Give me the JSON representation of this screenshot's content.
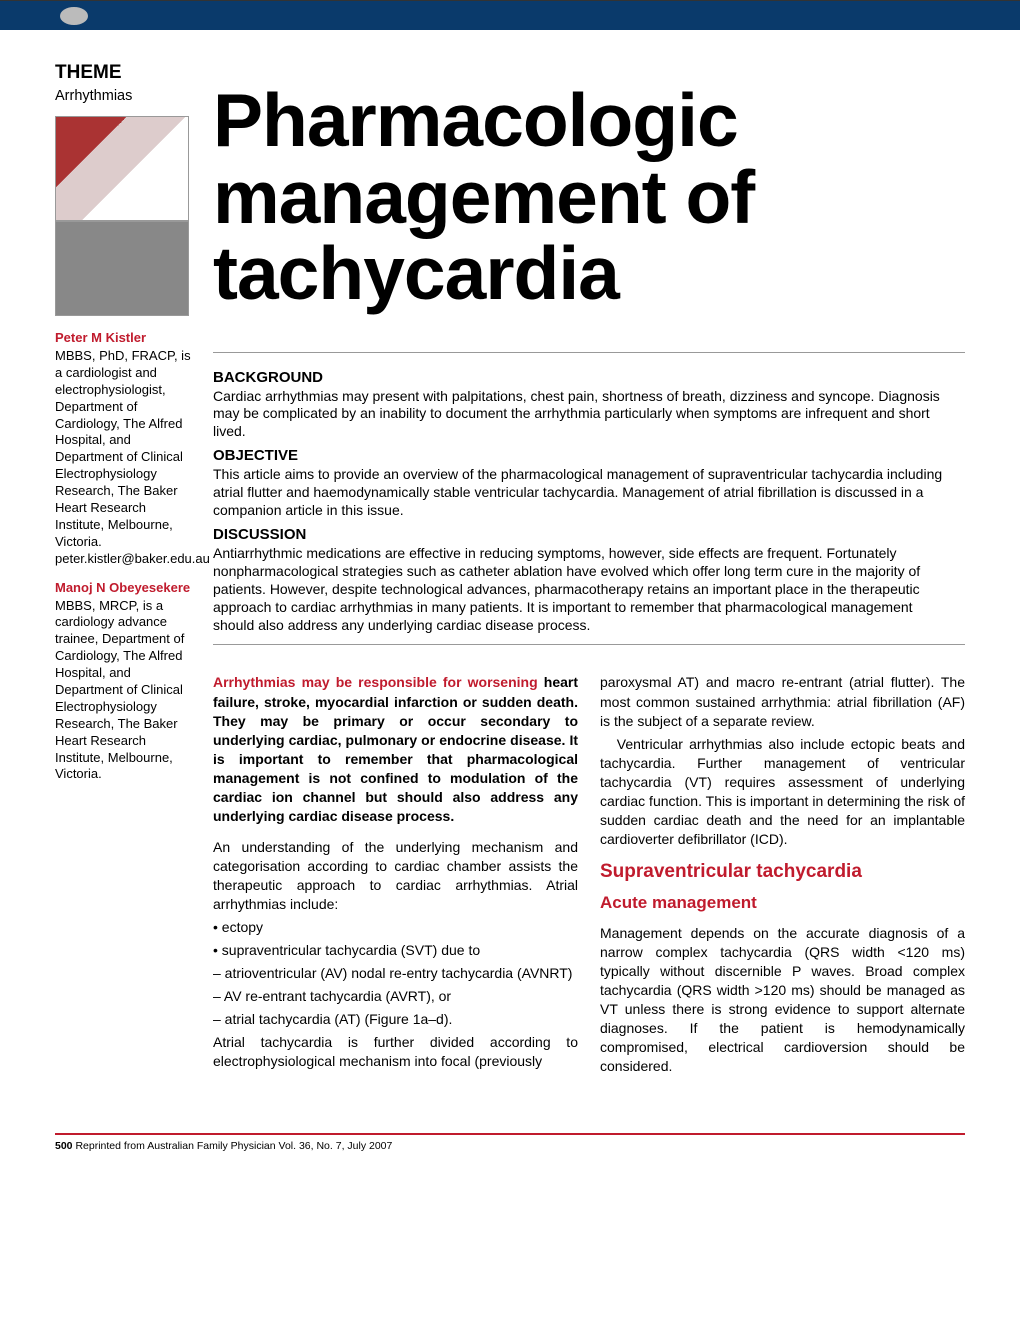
{
  "theme": {
    "label": "THEME",
    "sub": "Arrhythmias"
  },
  "title": "Pharmacologic management of tachycardia",
  "authors": [
    {
      "name": "Peter M Kistler",
      "bio": "MBBS, PhD, FRACP, is a cardiologist and electrophysiologist, Department of Cardiology, The Alfred Hospital, and Department of Clinical Electrophysiology Research, The Baker Heart Research Institute, Melbourne, Victoria. peter.kistler@baker.edu.au"
    },
    {
      "name": "Manoj N Obeyesekere",
      "bio": "MBBS, MRCP, is a cardiology advance trainee, Department of Cardiology, The Alfred Hospital, and Department of Clinical Electrophysiology Research, The Baker Heart Research Institute, Melbourne, Victoria."
    }
  ],
  "abstract": {
    "background_label": "BACKGROUND",
    "background": "Cardiac arrhythmias may present with palpitations, chest pain, shortness of breath, dizziness and syncope. Diagnosis may be complicated by an inability to document the arrhythmia particularly when symptoms are infrequent and short lived.",
    "objective_label": "OBJECTIVE",
    "objective": "This article aims to provide an overview of the pharmacological management of supraventricular tachycardia including atrial flutter and haemodynamically stable ventricular tachycardia. Management of atrial fibrillation is discussed in a companion article in this issue.",
    "discussion_label": "DISCUSSION",
    "discussion": "Antiarrhythmic medications are effective in reducing symptoms, however, side effects are frequent. Fortunately nonpharmacological strategies such as catheter ablation have evolved which offer long term cure in the majority of patients. However, despite technological advances, pharmacotherapy retains an important place in the therapeutic approach to cardiac arrhythmias in many patients. It is important to remember that pharmacological management should also address any underlying cardiac disease process."
  },
  "body": {
    "intro_lead": "Arrhythmias may be responsible for worsening",
    "intro_rest": " heart failure, stroke, myocardial infarction or sudden death. They may be primary or occur secondary to underlying cardiac, pulmonary or endocrine disease. It is important to remember that pharmacological management is not confined to modulation of the cardiac ion channel but should also address any underlying cardiac disease process.",
    "p2": "An understanding of the underlying mechanism and categorisation according to cardiac chamber assists the therapeutic approach to cardiac arrhythmias. Atrial arrhythmias include:",
    "bullets": [
      "• ectopy",
      "• supraventricular tachycardia (SVT) due to",
      "– atrioventricular (AV) nodal re-entry tachycardia (AVNRT)",
      "– AV re-entrant tachycardia (AVRT), or",
      "– atrial tachycardia (AT) (Figure 1a–d)."
    ],
    "p3a": "Atrial tachycardia is further divided according to electrophysiological mechanism into focal (previously",
    "p3b": "paroxysmal AT) and macro re-entrant (atrial flutter). The most common sustained arrhythmia: atrial fibrillation (AF) is the subject of a separate review.",
    "p4": "Ventricular arrhythmias also include ectopic beats and tachycardia. Further management of ventricular tachycardia (VT) requires assessment of underlying cardiac function. This is important in determining the risk of sudden cardiac death and the need for an implantable cardioverter defibrillator (ICD).",
    "h2": "Supraventricular tachycardia",
    "h3": "Acute management",
    "p5": "Management depends on the accurate diagnosis of a narrow complex tachycardia (QRS width <120 ms) typically without discernible P waves. Broad complex tachycardia (QRS width >120 ms) should be managed as VT unless there is strong evidence to support alternate diagnoses. If the patient is hemodynamically compromised, electrical cardioversion should be considered."
  },
  "footer": {
    "page_num": "500",
    "text": "Reprinted from Australian Family Physician Vol. 36, No. 7, July 2007"
  },
  "colors": {
    "brand_red": "#c01b2d",
    "top_bar": "#0a3a6b"
  }
}
